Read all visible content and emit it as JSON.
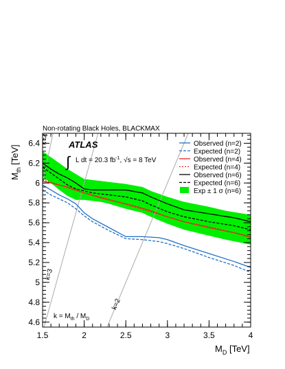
{
  "chart_data": {
    "type": "line",
    "title": "Non-rotating Black Holes, BLACKMAX",
    "experiment": "ATLAS",
    "lumi_text": "L dt = 20.3 fb",
    "lumi_sup": "-1",
    "energy_text": ", √s = 8 TeV",
    "xlabel": "M",
    "xlabel_sub": "D",
    "xlabel_unit": " [TeV]",
    "ylabel": "M",
    "ylabel_sub": "th",
    "ylabel_unit": " [TeV]",
    "xlim": [
      1.5,
      4.0
    ],
    "ylim": [
      4.55,
      6.5
    ],
    "x_ticks": [
      1.5,
      2,
      2.5,
      3,
      3.5,
      4
    ],
    "x_tick_labels": [
      "1.5",
      "2",
      "2.5",
      "3",
      "3.5",
      "4"
    ],
    "y_ticks": [
      4.6,
      4.8,
      5.0,
      5.2,
      5.4,
      5.6,
      5.8,
      6.0,
      6.2,
      6.4
    ],
    "y_tick_labels": [
      "4.6",
      "4.8",
      "5",
      "5.2",
      "5.4",
      "5.6",
      "5.8",
      "6",
      "6.2",
      "6.4"
    ],
    "k_note": {
      "a": "k = M",
      "a_sub": "th",
      "b": " / M",
      "b_sub": "D"
    },
    "k_lines": [
      {
        "k": 2,
        "label": "k=2",
        "points": [
          [
            2.275,
            4.55
          ],
          [
            3.25,
            6.5
          ]
        ],
        "label_at": [
          2.38,
          4.72
        ]
      },
      {
        "k": 3,
        "label": "k=3",
        "points": [
          [
            1.517,
            4.55
          ],
          [
            2.167,
            6.5
          ]
        ],
        "label_at": [
          1.58,
          5.02
        ]
      },
      {
        "k": 4,
        "label": "k=4",
        "points": [
          [
            1.5,
            6.0
          ],
          [
            1.625,
            6.5
          ]
        ],
        "label_at": [
          1.535,
          6.38
        ]
      }
    ],
    "band": {
      "name": "Exp ± 1 σ (n=6)",
      "color": "#00ee00",
      "x": [
        1.5,
        1.6,
        1.7,
        1.8,
        1.9,
        2.0,
        2.1,
        2.2,
        2.3,
        2.5,
        2.7,
        2.8,
        3.0,
        3.2,
        3.5,
        3.7,
        4.0
      ],
      "upper": [
        6.32,
        6.26,
        6.2,
        6.14,
        6.09,
        6.04,
        6.03,
        6.02,
        6.01,
        5.99,
        5.96,
        5.92,
        5.86,
        5.81,
        5.76,
        5.72,
        5.68
      ],
      "lower": [
        6.06,
        6.0,
        5.93,
        5.87,
        5.83,
        5.83,
        5.82,
        5.81,
        5.79,
        5.74,
        5.7,
        5.66,
        5.59,
        5.53,
        5.47,
        5.43,
        5.38
      ]
    },
    "series": [
      {
        "name": "Observed (n=2)",
        "color": "#1f6fc7",
        "dash": "solid",
        "x": [
          1.5,
          1.6,
          1.7,
          1.8,
          1.9,
          2.0,
          2.1,
          2.3,
          2.5,
          2.7,
          2.9,
          3.0,
          3.2,
          3.5,
          3.8,
          4.0
        ],
        "y": [
          5.98,
          5.93,
          5.88,
          5.84,
          5.79,
          5.7,
          5.64,
          5.55,
          5.46,
          5.46,
          5.45,
          5.43,
          5.37,
          5.29,
          5.21,
          5.15
        ]
      },
      {
        "name": "Expected (n=2)",
        "color": "#1f6fc7",
        "dash": "dash",
        "x": [
          1.5,
          1.6,
          1.7,
          1.8,
          1.9,
          2.0,
          2.1,
          2.3,
          2.5,
          2.7,
          2.9,
          3.0,
          3.2,
          3.5,
          3.8,
          4.0
        ],
        "y": [
          5.93,
          5.88,
          5.84,
          5.8,
          5.74,
          5.67,
          5.61,
          5.52,
          5.44,
          5.43,
          5.41,
          5.39,
          5.34,
          5.25,
          5.17,
          5.1
        ]
      },
      {
        "name": "Observed (n=4)",
        "color": "#e8291c",
        "dash": "solid",
        "x": [
          1.5,
          1.6,
          1.8,
          2.0,
          2.2,
          2.4,
          2.6,
          2.8,
          3.0,
          3.2,
          3.5,
          3.8,
          4.0
        ],
        "y": [
          6.02,
          6.0,
          5.96,
          5.9,
          5.85,
          5.81,
          5.77,
          5.72,
          5.66,
          5.61,
          5.55,
          5.5,
          5.46
        ]
      },
      {
        "name": "Expected (n=4)",
        "color": "#e8291c",
        "dash": "dot",
        "x": [
          1.5,
          1.6,
          1.8,
          2.0,
          2.2,
          2.4,
          2.6,
          2.8,
          3.0,
          3.2,
          3.5,
          3.8,
          4.0
        ],
        "y": [
          6.03,
          6.01,
          5.95,
          5.9,
          5.86,
          5.81,
          5.76,
          5.71,
          5.66,
          5.61,
          5.56,
          5.5,
          5.45
        ]
      },
      {
        "name": "Observed (n=6)",
        "color": "#000000",
        "dash": "solid",
        "x": [
          1.5,
          1.6,
          1.7,
          1.8,
          1.9,
          2.0,
          2.1,
          2.3,
          2.5,
          2.7,
          2.8,
          3.0,
          3.2,
          3.5,
          3.8,
          4.0
        ],
        "y": [
          6.2,
          6.14,
          6.09,
          6.05,
          6.0,
          5.94,
          5.93,
          5.93,
          5.93,
          5.9,
          5.86,
          5.79,
          5.73,
          5.69,
          5.65,
          5.61
        ]
      },
      {
        "name": "Expected (n=6)",
        "color": "#000000",
        "dash": "dash",
        "x": [
          1.5,
          1.6,
          1.7,
          1.8,
          1.9,
          2.0,
          2.1,
          2.3,
          2.5,
          2.7,
          2.8,
          3.0,
          3.2,
          3.5,
          3.8,
          4.0
        ],
        "y": [
          6.16,
          6.1,
          6.04,
          5.98,
          5.94,
          5.92,
          5.9,
          5.88,
          5.86,
          5.82,
          5.78,
          5.71,
          5.66,
          5.61,
          5.57,
          5.53
        ]
      }
    ]
  }
}
